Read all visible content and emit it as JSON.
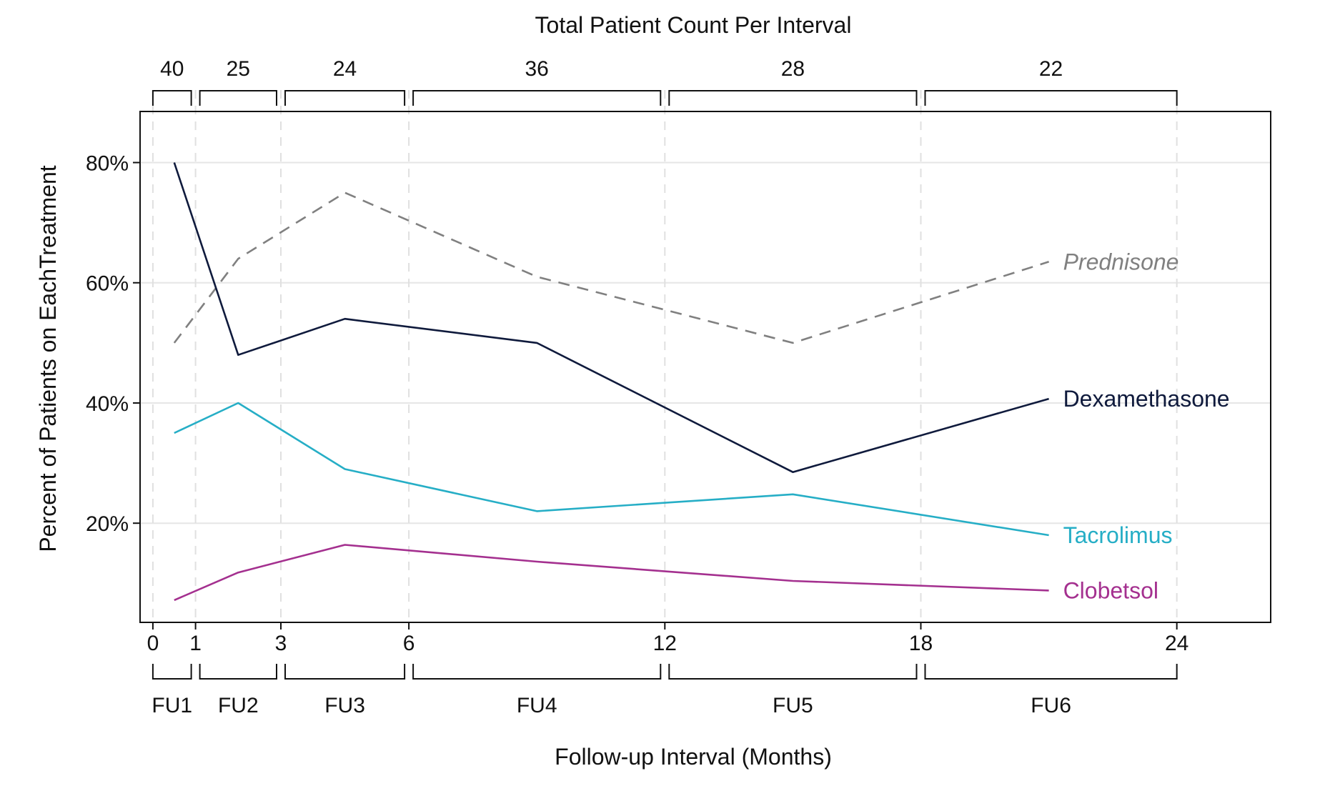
{
  "chart_data": {
    "type": "line",
    "title": "Total Patient Count Per Interval",
    "xlabel": "Follow-up Interval (Months)",
    "ylabel": "Percent of Patients on EachTreatment",
    "xlim": [
      -0.3,
      26.2
    ],
    "ylim": [
      3.5,
      88.5
    ],
    "x_ticks": [
      0,
      1,
      3,
      6,
      12,
      18,
      24
    ],
    "y_ticks": [
      20,
      40,
      60,
      80
    ],
    "y_tick_labels": [
      "20%",
      "40%",
      "60%",
      "80%"
    ],
    "grid": true,
    "intervals": [
      {
        "label": "FU1",
        "start": 0,
        "end": 1,
        "count": "40"
      },
      {
        "label": "FU2",
        "start": 1,
        "end": 3,
        "count": "25"
      },
      {
        "label": "FU3",
        "start": 3,
        "end": 6,
        "count": "24"
      },
      {
        "label": "FU4",
        "start": 6,
        "end": 12,
        "count": "36"
      },
      {
        "label": "FU5",
        "start": 12,
        "end": 18,
        "count": "28"
      },
      {
        "label": "FU6",
        "start": 18,
        "end": 24,
        "count": "22"
      }
    ],
    "x": [
      0.5,
      2,
      4.5,
      9,
      15,
      21
    ],
    "series": [
      {
        "name": "Prednisone",
        "color": "#808080",
        "dashed": true,
        "italic": true,
        "values": [
          50,
          64,
          75,
          61,
          50,
          63.5
        ]
      },
      {
        "name": "Dexamethasone",
        "color": "#0f1a3c",
        "dashed": false,
        "italic": false,
        "values": [
          80,
          48,
          54,
          50,
          28.5,
          40.7
        ]
      },
      {
        "name": "Tacrolimus",
        "color": "#26aec6",
        "dashed": false,
        "italic": false,
        "values": [
          35,
          40,
          29,
          22,
          24.8,
          18
        ]
      },
      {
        "name": "Clobetsol",
        "color": "#a4308f",
        "dashed": false,
        "italic": false,
        "values": [
          7.2,
          11.8,
          16.4,
          13.6,
          10.4,
          8.8
        ]
      }
    ]
  }
}
